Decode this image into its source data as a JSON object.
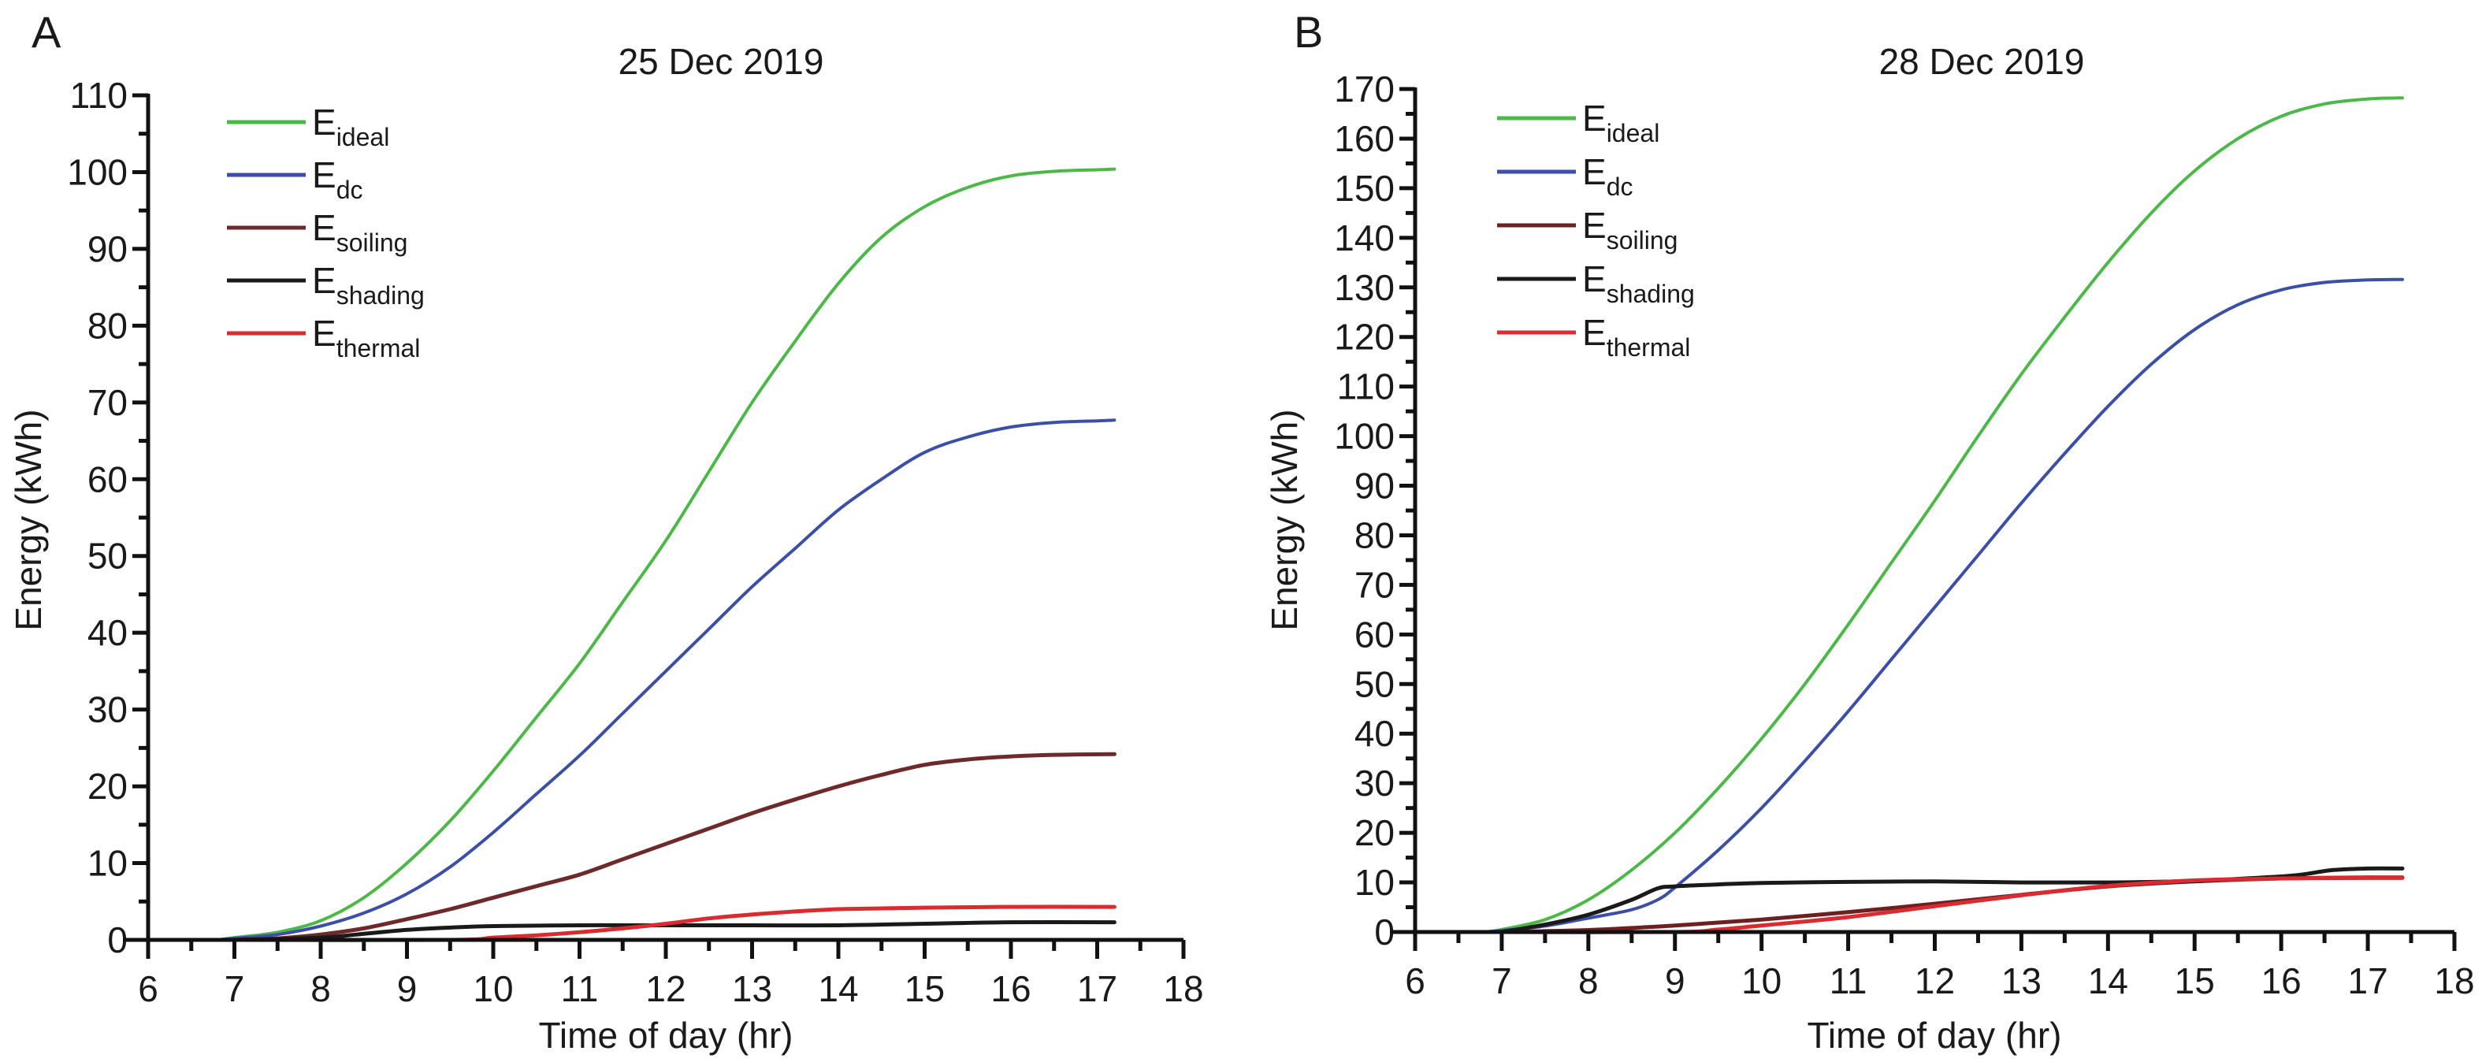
{
  "chart_data": [
    {
      "type": "line",
      "panel_label": "A",
      "title": "25 Dec 2019",
      "xlabel": "Time of day (hr)",
      "ylabel": "Energy (kWh)",
      "xlim": [
        6,
        18
      ],
      "ylim": [
        0,
        110
      ],
      "xticks": [
        6,
        7,
        8,
        9,
        10,
        11,
        12,
        13,
        14,
        15,
        16,
        17,
        18
      ],
      "yticks": [
        0,
        10,
        20,
        30,
        40,
        50,
        60,
        70,
        80,
        90,
        100,
        110
      ],
      "grid": false,
      "legend_position": "top-left",
      "series": [
        {
          "name": "E",
          "subscript": "ideal",
          "key": "ideal",
          "color": "#4cb848",
          "x": [
            6.8,
            7,
            7.5,
            8,
            8.5,
            9,
            9.5,
            10,
            10.5,
            11,
            11.5,
            12,
            12.5,
            13,
            13.5,
            14,
            14.5,
            15,
            15.5,
            16,
            16.5,
            17,
            17.2
          ],
          "y": [
            0,
            0.3,
            1,
            2.5,
            5.5,
            10,
            15.5,
            22,
            29,
            36,
            44,
            52,
            61,
            70,
            78,
            85.5,
            91.5,
            95.5,
            98,
            99.5,
            100.1,
            100.3,
            100.4
          ]
        },
        {
          "name": "E",
          "subscript": "dc",
          "key": "dc",
          "color": "#3c4fa8",
          "x": [
            6.8,
            7,
            7.5,
            8,
            8.5,
            9,
            9.5,
            10,
            10.5,
            11,
            11.5,
            12,
            12.5,
            13,
            13.5,
            14,
            14.5,
            15,
            15.5,
            16,
            16.5,
            17,
            17.2
          ],
          "y": [
            0,
            0.2,
            0.7,
            1.8,
            3.5,
            6,
            9.5,
            14,
            19,
            24,
            29.5,
            35,
            40.5,
            46,
            51,
            56,
            60,
            63.5,
            65.5,
            66.8,
            67.4,
            67.6,
            67.7
          ]
        },
        {
          "name": "E",
          "subscript": "soiling",
          "key": "soiling",
          "color": "#6e2a2a",
          "x": [
            7,
            7.5,
            8,
            8.5,
            9,
            9.5,
            10,
            10.5,
            11,
            11.5,
            12,
            12.5,
            13,
            13.5,
            14,
            14.5,
            15,
            15.5,
            16,
            16.5,
            17.2
          ],
          "y": [
            0,
            0.2,
            0.7,
            1.5,
            2.7,
            4,
            5.5,
            7,
            8.5,
            10.5,
            12.5,
            14.5,
            16.5,
            18.3,
            20,
            21.5,
            22.8,
            23.5,
            23.9,
            24.1,
            24.2
          ]
        },
        {
          "name": "E",
          "subscript": "shading",
          "key": "shading",
          "color": "#1a1a1a",
          "x": [
            7,
            8,
            8.5,
            9,
            9.5,
            10,
            11,
            12,
            13,
            14,
            15,
            16,
            17.2
          ],
          "y": [
            0,
            0.3,
            0.8,
            1.3,
            1.6,
            1.8,
            1.9,
            1.9,
            1.9,
            1.9,
            2.1,
            2.3,
            2.3
          ]
        },
        {
          "name": "E",
          "subscript": "thermal",
          "key": "thermal",
          "color": "#d92b30",
          "x": [
            7,
            9.5,
            10,
            10.5,
            11,
            11.5,
            12,
            12.5,
            13,
            13.5,
            14,
            14.5,
            15,
            16,
            17.2
          ],
          "y": [
            0,
            0,
            0.3,
            0.6,
            1,
            1.5,
            2.1,
            2.8,
            3.3,
            3.7,
            4,
            4.1,
            4.2,
            4.3,
            4.3
          ]
        }
      ]
    },
    {
      "type": "line",
      "panel_label": "B",
      "title": "28 Dec 2019",
      "xlabel": "Time of day (hr)",
      "ylabel": "Energy (kWh)",
      "xlim": [
        6,
        18
      ],
      "ylim": [
        0,
        170
      ],
      "xticks": [
        6,
        7,
        8,
        9,
        10,
        11,
        12,
        13,
        14,
        15,
        16,
        17,
        18
      ],
      "yticks": [
        0,
        10,
        20,
        30,
        40,
        50,
        60,
        70,
        80,
        90,
        100,
        110,
        120,
        130,
        140,
        150,
        160,
        170
      ],
      "grid": false,
      "legend_position": "top-left",
      "series": [
        {
          "name": "E",
          "subscript": "ideal",
          "key": "ideal",
          "color": "#4cb848",
          "x": [
            6.8,
            7,
            7.5,
            8,
            8.5,
            9,
            9.5,
            10,
            10.5,
            11,
            11.5,
            12,
            12.5,
            13,
            13.5,
            14,
            14.5,
            15,
            15.5,
            16,
            16.5,
            17,
            17.4
          ],
          "y": [
            0,
            0.5,
            2.5,
            6.5,
            12.5,
            20,
            29,
            39,
            50,
            62,
            74.5,
            87,
            100,
            112.5,
            124,
            135,
            145,
            153.5,
            160,
            164.5,
            167,
            168,
            168.2
          ]
        },
        {
          "name": "E",
          "subscript": "dc",
          "key": "dc",
          "color": "#3c4fa8",
          "x": [
            6.8,
            7,
            7.5,
            8,
            8.5,
            8.8,
            9,
            9.5,
            10,
            10.5,
            11,
            11.5,
            12,
            12.5,
            13,
            13.5,
            14,
            14.5,
            15,
            15.5,
            16,
            16.5,
            17,
            17.4
          ],
          "y": [
            0,
            0.3,
            1.2,
            2.8,
            4.5,
            6.5,
            9,
            16.5,
            25,
            34.5,
            44.5,
            55,
            65.5,
            76,
            86.5,
            96.5,
            106,
            114.5,
            121.5,
            126.5,
            129.5,
            131,
            131.5,
            131.6
          ]
        },
        {
          "name": "E",
          "subscript": "soiling",
          "key": "soiling",
          "color": "#6e1f1f",
          "x": [
            7,
            8,
            9,
            10,
            11,
            12,
            13,
            14,
            15,
            16,
            17,
            17.4
          ],
          "y": [
            0,
            0.4,
            1.3,
            2.5,
            4,
            5.7,
            7.5,
            9.2,
            10.2,
            10.8,
            11,
            11
          ]
        },
        {
          "name": "E",
          "subscript": "shading",
          "key": "shading",
          "color": "#1a1a1a",
          "x": [
            7,
            7.5,
            8,
            8.5,
            8.8,
            9,
            9.5,
            10,
            11,
            12,
            13,
            14,
            15,
            15.8,
            16.2,
            16.6,
            17,
            17.4
          ],
          "y": [
            0,
            1.5,
            3.5,
            6.5,
            8.8,
            9.2,
            9.6,
            9.9,
            10.1,
            10.2,
            10,
            10,
            10.3,
            11,
            11.5,
            12.5,
            12.8,
            12.8
          ]
        },
        {
          "name": "E",
          "subscript": "thermal",
          "key": "thermal",
          "color": "#d92b30",
          "x": [
            7,
            9,
            9.5,
            10,
            11,
            12,
            13,
            14,
            15,
            16,
            17,
            17.4
          ],
          "y": [
            0,
            0,
            0.5,
            1.3,
            3,
            5.2,
            7.4,
            9.3,
            10.4,
            10.8,
            10.9,
            10.9
          ]
        }
      ]
    }
  ]
}
